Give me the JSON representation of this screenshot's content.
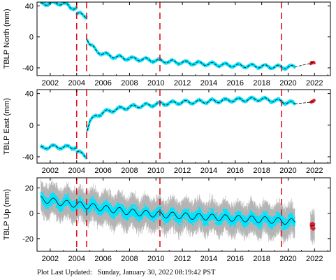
{
  "footer": {
    "label": "Plot Last Updated:",
    "value": "Sunday, January 30, 2022 08:19:42 PST"
  },
  "colors": {
    "obs": "#00e5ff",
    "err": "#b4b4b4",
    "model": "#000000",
    "event": "#e0141c",
    "recent": "#d9202a"
  },
  "event_lines": [
    2004.0,
    2004.75,
    2010.3,
    2019.5
  ],
  "chart_data": [
    {
      "type": "scatter",
      "ylabel": "TBLP North (mm)",
      "xlim": [
        2001.0,
        2023.2
      ],
      "ylim": [
        -50,
        45
      ],
      "yticks": [
        -40,
        0,
        40
      ],
      "xticks": [
        2002,
        2004,
        2006,
        2008,
        2010,
        2012,
        2014,
        2016,
        2018,
        2020,
        2022
      ],
      "grid": false,
      "series": [
        {
          "values": {
            "x": [
              2001.3,
              2002.0,
              2002.5,
              2003.0,
              2003.5,
              2004.0
            ],
            "y": [
              42,
              44,
              43,
              44,
              38,
              38
            ]
          }
        },
        {
          "values": {
            "x": [
              2004.0,
              2004.5,
              2004.75
            ],
            "y": [
              30,
              28,
              27
            ]
          }
        },
        {
          "values": {
            "x": [
              2004.8,
              2005.0,
              2005.5,
              2006.0,
              2007.0,
              2008.0,
              2009.0,
              2010.3,
              2012.0,
              2014.0,
              2016.0,
              2018.0,
              2019.5,
              2020.5
            ],
            "y": [
              -2,
              -10,
              -18,
              -22,
              -26,
              -28,
              -29,
              -31,
              -33,
              -35,
              -37,
              -38,
              -39,
              -39
            ]
          }
        },
        {
          "values": {
            "x": [
              2021.7,
              2021.85,
              2022.0
            ],
            "y": [
              -34,
              -33,
              -33
            ]
          }
        }
      ]
    },
    {
      "type": "scatter",
      "ylabel": "TBLP East (mm)",
      "xlim": [
        2001.0,
        2023.2
      ],
      "ylim": [
        -48,
        45
      ],
      "yticks": [
        -40,
        0,
        40
      ],
      "xticks": [
        2002,
        2004,
        2006,
        2008,
        2010,
        2012,
        2014,
        2016,
        2018,
        2020,
        2022
      ],
      "grid": false,
      "series": [
        {
          "values": {
            "x": [
              2001.3,
              2002.0,
              2003.0,
              2004.0
            ],
            "y": [
              -29,
              -27,
              -28,
              -28
            ]
          }
        },
        {
          "values": {
            "x": [
              2004.0,
              2004.5,
              2004.75
            ],
            "y": [
              -34,
              -37,
              -39
            ]
          }
        },
        {
          "values": {
            "x": [
              2004.8,
              2005.0,
              2005.5,
              2006.0,
              2007.0,
              2008.0,
              2010.3,
              2012.0,
              2014.0,
              2016.0,
              2018.0,
              2019.5,
              2020.5
            ],
            "y": [
              -5,
              5,
              12,
              16,
              20,
              23,
              27,
              29,
              30,
              32,
              33,
              30,
              27
            ]
          }
        },
        {
          "values": {
            "x": [
              2021.7,
              2021.85,
              2022.0
            ],
            "y": [
              29,
              30,
              31
            ]
          }
        }
      ]
    },
    {
      "type": "scatter",
      "ylabel": "TBLP Up (mm)",
      "xlim": [
        2001.0,
        2023.2
      ],
      "ylim": [
        -30,
        28
      ],
      "yticks": [
        -20,
        0,
        20
      ],
      "xticks": [
        2002,
        2004,
        2006,
        2008,
        2010,
        2012,
        2014,
        2016,
        2018,
        2020,
        2022
      ],
      "grid": false,
      "series": [
        {
          "values": {
            "x": [
              2001.3,
              2002.0,
              2003.0,
              2004.0,
              2004.75,
              2006.0,
              2008.0,
              2010.3,
              2012.0,
              2014.0,
              2016.0,
              2018.0,
              2019.5,
              2020.5
            ],
            "y": [
              11,
              10,
              8,
              7,
              6,
              4,
              1,
              -1,
              -2,
              -3,
              -4,
              -5,
              -6,
              -7
            ]
          }
        },
        {
          "values": {
            "x": [
              2021.7,
              2021.85,
              2022.0
            ],
            "y": [
              -10,
              -10,
              -10
            ]
          }
        }
      ]
    }
  ]
}
